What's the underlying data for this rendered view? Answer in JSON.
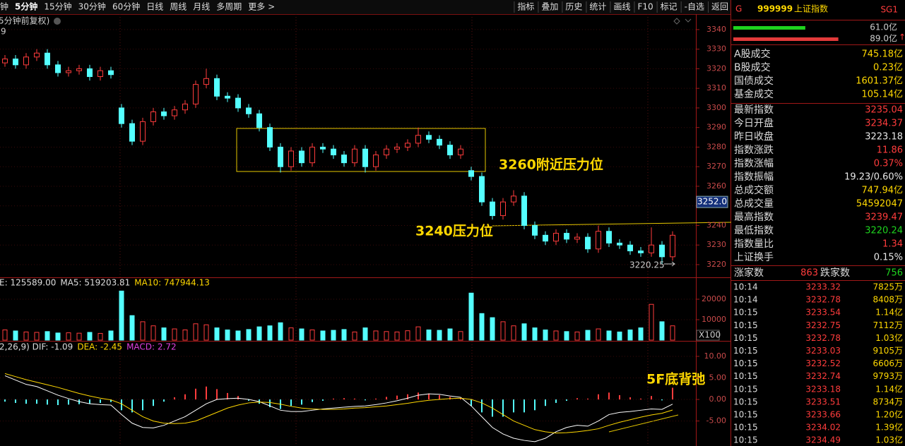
{
  "toolbar": {
    "left": [
      "钟",
      "5分钟",
      "15分钟",
      "30分钟",
      "60分钟",
      "日线",
      "周线",
      "月线",
      "多周期",
      "更多 >"
    ],
    "active": 1,
    "right": [
      "指标",
      "叠加",
      "历史",
      "统计",
      "画线",
      "F10",
      "标记",
      "-自选",
      "返回"
    ]
  },
  "chart_data": {
    "type": "candlestick",
    "header": [
      "5分钟前复权)",
      "9"
    ],
    "open": [
      3323,
      3325,
      3322,
      3326,
      3328,
      3322,
      3318,
      3319,
      3320,
      3316,
      3319,
      3300,
      3292,
      3283,
      3293,
      3298,
      3296,
      3299,
      3302,
      3312,
      3315,
      3306,
      3305,
      3300,
      3297,
      3290,
      3280,
      3270,
      3278,
      3272,
      3280,
      3279,
      3276,
      3272,
      3279,
      3270,
      3276,
      3279,
      3280,
      3282,
      3286,
      3284,
      3281,
      3276,
      3268,
      3265,
      3252,
      3245,
      3252,
      3255,
      3240,
      3235,
      3232,
      3236,
      3233,
      3234,
      3228,
      3237,
      3231,
      3230,
      3227,
      3226,
      3230,
      3224
    ],
    "high": [
      3327,
      3327,
      3328,
      3330,
      3330,
      3324,
      3321,
      3322,
      3322,
      3321,
      3321,
      3302,
      3294,
      3295,
      3300,
      3300,
      3301,
      3304,
      3314,
      3320,
      3317,
      3308,
      3307,
      3302,
      3299,
      3292,
      3282,
      3280,
      3280,
      3282,
      3282,
      3281,
      3278,
      3281,
      3281,
      3278,
      3281,
      3282,
      3284,
      3290,
      3288,
      3286,
      3283,
      3281,
      3270,
      3267,
      3254,
      3254,
      3258,
      3257,
      3242,
      3237,
      3238,
      3238,
      3236,
      3236,
      3240,
      3239,
      3233,
      3232,
      3229,
      3239,
      3232,
      3237
    ],
    "low": [
      3321,
      3320,
      3320,
      3324,
      3320,
      3316,
      3316,
      3317,
      3314,
      3314,
      3315,
      3290,
      3281,
      3281,
      3291,
      3294,
      3294,
      3297,
      3300,
      3310,
      3304,
      3303,
      3298,
      3295,
      3288,
      3278,
      3267,
      3268,
      3270,
      3270,
      3277,
      3274,
      3270,
      3270,
      3267,
      3268,
      3274,
      3277,
      3278,
      3280,
      3282,
      3279,
      3274,
      3274,
      3263,
      3250,
      3243,
      3243,
      3250,
      3238,
      3233,
      3230,
      3230,
      3231,
      3231,
      3226,
      3226,
      3229,
      3228,
      3225,
      3224,
      3224,
      3220.25,
      3222
    ],
    "close": [
      3325,
      3322,
      3326,
      3328,
      3322,
      3318,
      3319,
      3320,
      3316,
      3319,
      3317,
      3292,
      3283,
      3293,
      3298,
      3296,
      3299,
      3302,
      3312,
      3315,
      3306,
      3305,
      3300,
      3297,
      3290,
      3280,
      3270,
      3278,
      3272,
      3280,
      3279,
      3276,
      3272,
      3279,
      3270,
      3276,
      3279,
      3280,
      3282,
      3286,
      3284,
      3281,
      3276,
      3279,
      3265,
      3252,
      3245,
      3252,
      3255,
      3240,
      3235,
      3232,
      3236,
      3233,
      3234,
      3228,
      3237,
      3231,
      3230,
      3227,
      3226,
      3230,
      3224,
      3235
    ],
    "up_color": "#ff3c3c",
    "down_color": "#54ffff",
    "ylim": [
      3213.5,
      3347.9
    ],
    "yticks": [
      3220,
      3230,
      3240,
      3250,
      3260,
      3270,
      3280,
      3290,
      3300,
      3310,
      3320,
      3330,
      3340
    ],
    "last_marker": {
      "value": 3252.0,
      "label": "3252.0"
    },
    "annotations": [
      "3260附近压力位",
      "3240压力位",
      "5F底背弛"
    ],
    "volume": {
      "header": [
        "E: 125589.00",
        "MA5: 519203.81",
        "MA10: 747944.13"
      ],
      "unit": "X100",
      "values": [
        5000,
        4500,
        4000,
        3800,
        4200,
        3500,
        3600,
        3400,
        3800,
        3300,
        4500,
        24000,
        12000,
        9000,
        7000,
        6000,
        5500,
        5000,
        8000,
        7500,
        6000,
        5000,
        4500,
        5200,
        6500,
        7000,
        8500,
        6000,
        5500,
        5000,
        4500,
        4800,
        5200,
        4000,
        6000,
        4500,
        4200,
        4000,
        4600,
        6500,
        5000,
        4800,
        5500,
        4200,
        23000,
        13000,
        11000,
        9000,
        7000,
        8000,
        6000,
        5000,
        4500,
        4200,
        4000,
        4800,
        5500,
        4500,
        4000,
        5000,
        6000,
        17500,
        9000,
        7000
      ],
      "ylim": [
        0,
        30000
      ],
      "yticks": [
        10000,
        20000
      ]
    },
    "macd": {
      "header": [
        "2,26,9) DIF: -1.09",
        "DEA: -2.45",
        "MACD: 2.72"
      ],
      "hist": [
        -0.5,
        -0.8,
        -1,
        -1,
        -1.2,
        -1.3,
        -1.2,
        -1.1,
        -1,
        -0.8,
        -0.6,
        -2.5,
        -3,
        -2.5,
        -1.5,
        -0.5,
        0.5,
        1.2,
        2.5,
        3,
        2.4,
        1.5,
        0.8,
        -0.3,
        -1,
        -1.8,
        -2.2,
        -1.5,
        -1.2,
        -0.6,
        -0.3,
        0.2,
        0.3,
        0.2,
        -0.2,
        0.2,
        0.6,
        0.9,
        1.2,
        1.6,
        1.4,
        1,
        0.6,
        0.3,
        -1.5,
        -3,
        -4,
        -4,
        -3,
        -3,
        -2.5,
        -1.5,
        -0.8,
        -0.3,
        0.3,
        0.2,
        1.2,
        1.6,
        1,
        0.5,
        0.2,
        0.8,
        -0.2,
        2.72
      ],
      "dif": [
        5.5,
        4.5,
        3.5,
        3,
        2,
        1,
        0.2,
        -0.5,
        -1,
        -1.2,
        -1.3,
        -3.5,
        -5.5,
        -6.5,
        -6.6,
        -6,
        -5,
        -4,
        -2.5,
        -1,
        0,
        0.2,
        0.3,
        0,
        -0.5,
        -1.5,
        -2.5,
        -2.8,
        -2.8,
        -2.5,
        -2.2,
        -2,
        -1.8,
        -1.6,
        -1.5,
        -1.2,
        -0.8,
        -0.3,
        0.3,
        1,
        1.3,
        1.2,
        0.8,
        0.5,
        -1.5,
        -4,
        -6.5,
        -8,
        -9,
        -9.5,
        -9.8,
        -9,
        -7.5,
        -6.5,
        -6,
        -6.2,
        -5,
        -3.5,
        -3,
        -2.8,
        -2.5,
        -2.2,
        -2.3,
        -1.09
      ],
      "dea": [
        6,
        5.3,
        4.6,
        4,
        3.4,
        2.8,
        2.1,
        1.4,
        0.8,
        0.3,
        -0.1,
        -1,
        -2.5,
        -4,
        -5,
        -5.5,
        -5.6,
        -5.5,
        -5,
        -4,
        -3,
        -2,
        -1.3,
        -0.8,
        -0.6,
        -0.7,
        -1.1,
        -1.6,
        -2,
        -2.2,
        -2.3,
        -2.3,
        -2.2,
        -2,
        -1.9,
        -1.7,
        -1.5,
        -1.2,
        -0.9,
        -0.5,
        -0.2,
        0,
        0.2,
        0.3,
        0,
        -0.8,
        -2,
        -3.5,
        -5,
        -6,
        -7,
        -7.5,
        -7.8,
        -7.7,
        -7.5,
        -7.2,
        -6.8,
        -6,
        -5.3,
        -4.7,
        -4.1,
        -3.6,
        -3.2,
        -2.45
      ],
      "ylim": [
        -10.8,
        13.6
      ],
      "yticks": [
        {
          "value": 10,
          "label": "10.00"
        },
        {
          "value": 5,
          "label": "5.00"
        },
        {
          "value": 0,
          "label": "0.00"
        },
        {
          "value": -5,
          "label": "-5.00"
        }
      ]
    }
  },
  "quote": {
    "flag": "G",
    "code": "999999",
    "name": "上证指数",
    "tag": "SG1",
    "bars": [
      {
        "value": 61.0,
        "label": "61.0亿",
        "color": "#1ed31e"
      },
      {
        "value": 89.0,
        "label": "89.0亿",
        "color": "#e23a3a"
      }
    ],
    "turnover_rows": [
      {
        "label": "A股成交",
        "value": "745.18亿",
        "color": "#ffd800"
      },
      {
        "label": "B股成交",
        "value": "0.23亿",
        "color": "#ffd800"
      },
      {
        "label": "国债成交",
        "value": "1601.37亿",
        "color": "#ffd800"
      },
      {
        "label": "基金成交",
        "value": "105.14亿",
        "color": "#ffd800"
      }
    ],
    "index_rows": [
      {
        "label": "最新指数",
        "value": "3235.04",
        "color": "#ff3c3c"
      },
      {
        "label": "今日开盘",
        "value": "3234.37",
        "color": "#ff3c3c"
      },
      {
        "label": "昨日收盘",
        "value": "3223.18",
        "color": "#e8e8e8"
      },
      {
        "label": "指数涨跌",
        "value": "11.86",
        "color": "#ff3c3c"
      },
      {
        "label": "指数涨幅",
        "value": "0.37%",
        "color": "#ff3c3c"
      },
      {
        "label": "指数振幅",
        "value": "19.23/0.60%",
        "color": "#e8e8e8"
      },
      {
        "label": "总成交额",
        "value": "747.94亿",
        "color": "#ffd800"
      },
      {
        "label": "总成交量",
        "value": "54592047",
        "color": "#ffd800"
      },
      {
        "label": "最高指数",
        "value": "3239.47",
        "color": "#ff3c3c"
      },
      {
        "label": "最低指数",
        "value": "3220.24",
        "color": "#1ed31e"
      },
      {
        "label": "指数量比",
        "value": "1.34",
        "color": "#ff3c3c"
      },
      {
        "label": "上证换手",
        "value": "0.15%",
        "color": "#e8e8e8"
      }
    ],
    "breadth": {
      "up_label": "涨家数",
      "up": "863",
      "down_label": "跌家数",
      "down": "756"
    },
    "trades": [
      [
        "10:14",
        "3233.32",
        "7825万"
      ],
      [
        "10:14",
        "3232.78",
        "8408万"
      ],
      [
        "10:15",
        "3233.54",
        "1.14亿"
      ],
      [
        "10:15",
        "3232.75",
        "7112万"
      ],
      [
        "10:15",
        "3232.78",
        "1.03亿"
      ],
      [
        "10:15",
        "3233.03",
        "9105万"
      ],
      [
        "10:15",
        "3232.52",
        "6606万"
      ],
      [
        "10:15",
        "3232.74",
        "9793万"
      ],
      [
        "10:15",
        "3233.18",
        "1.14亿"
      ],
      [
        "10:15",
        "3233.51",
        "8734万"
      ],
      [
        "10:15",
        "3233.66",
        "1.20亿"
      ],
      [
        "10:15",
        "3234.02",
        "1.39亿"
      ],
      [
        "10:15",
        "3234.49",
        "1.03亿"
      ]
    ]
  }
}
